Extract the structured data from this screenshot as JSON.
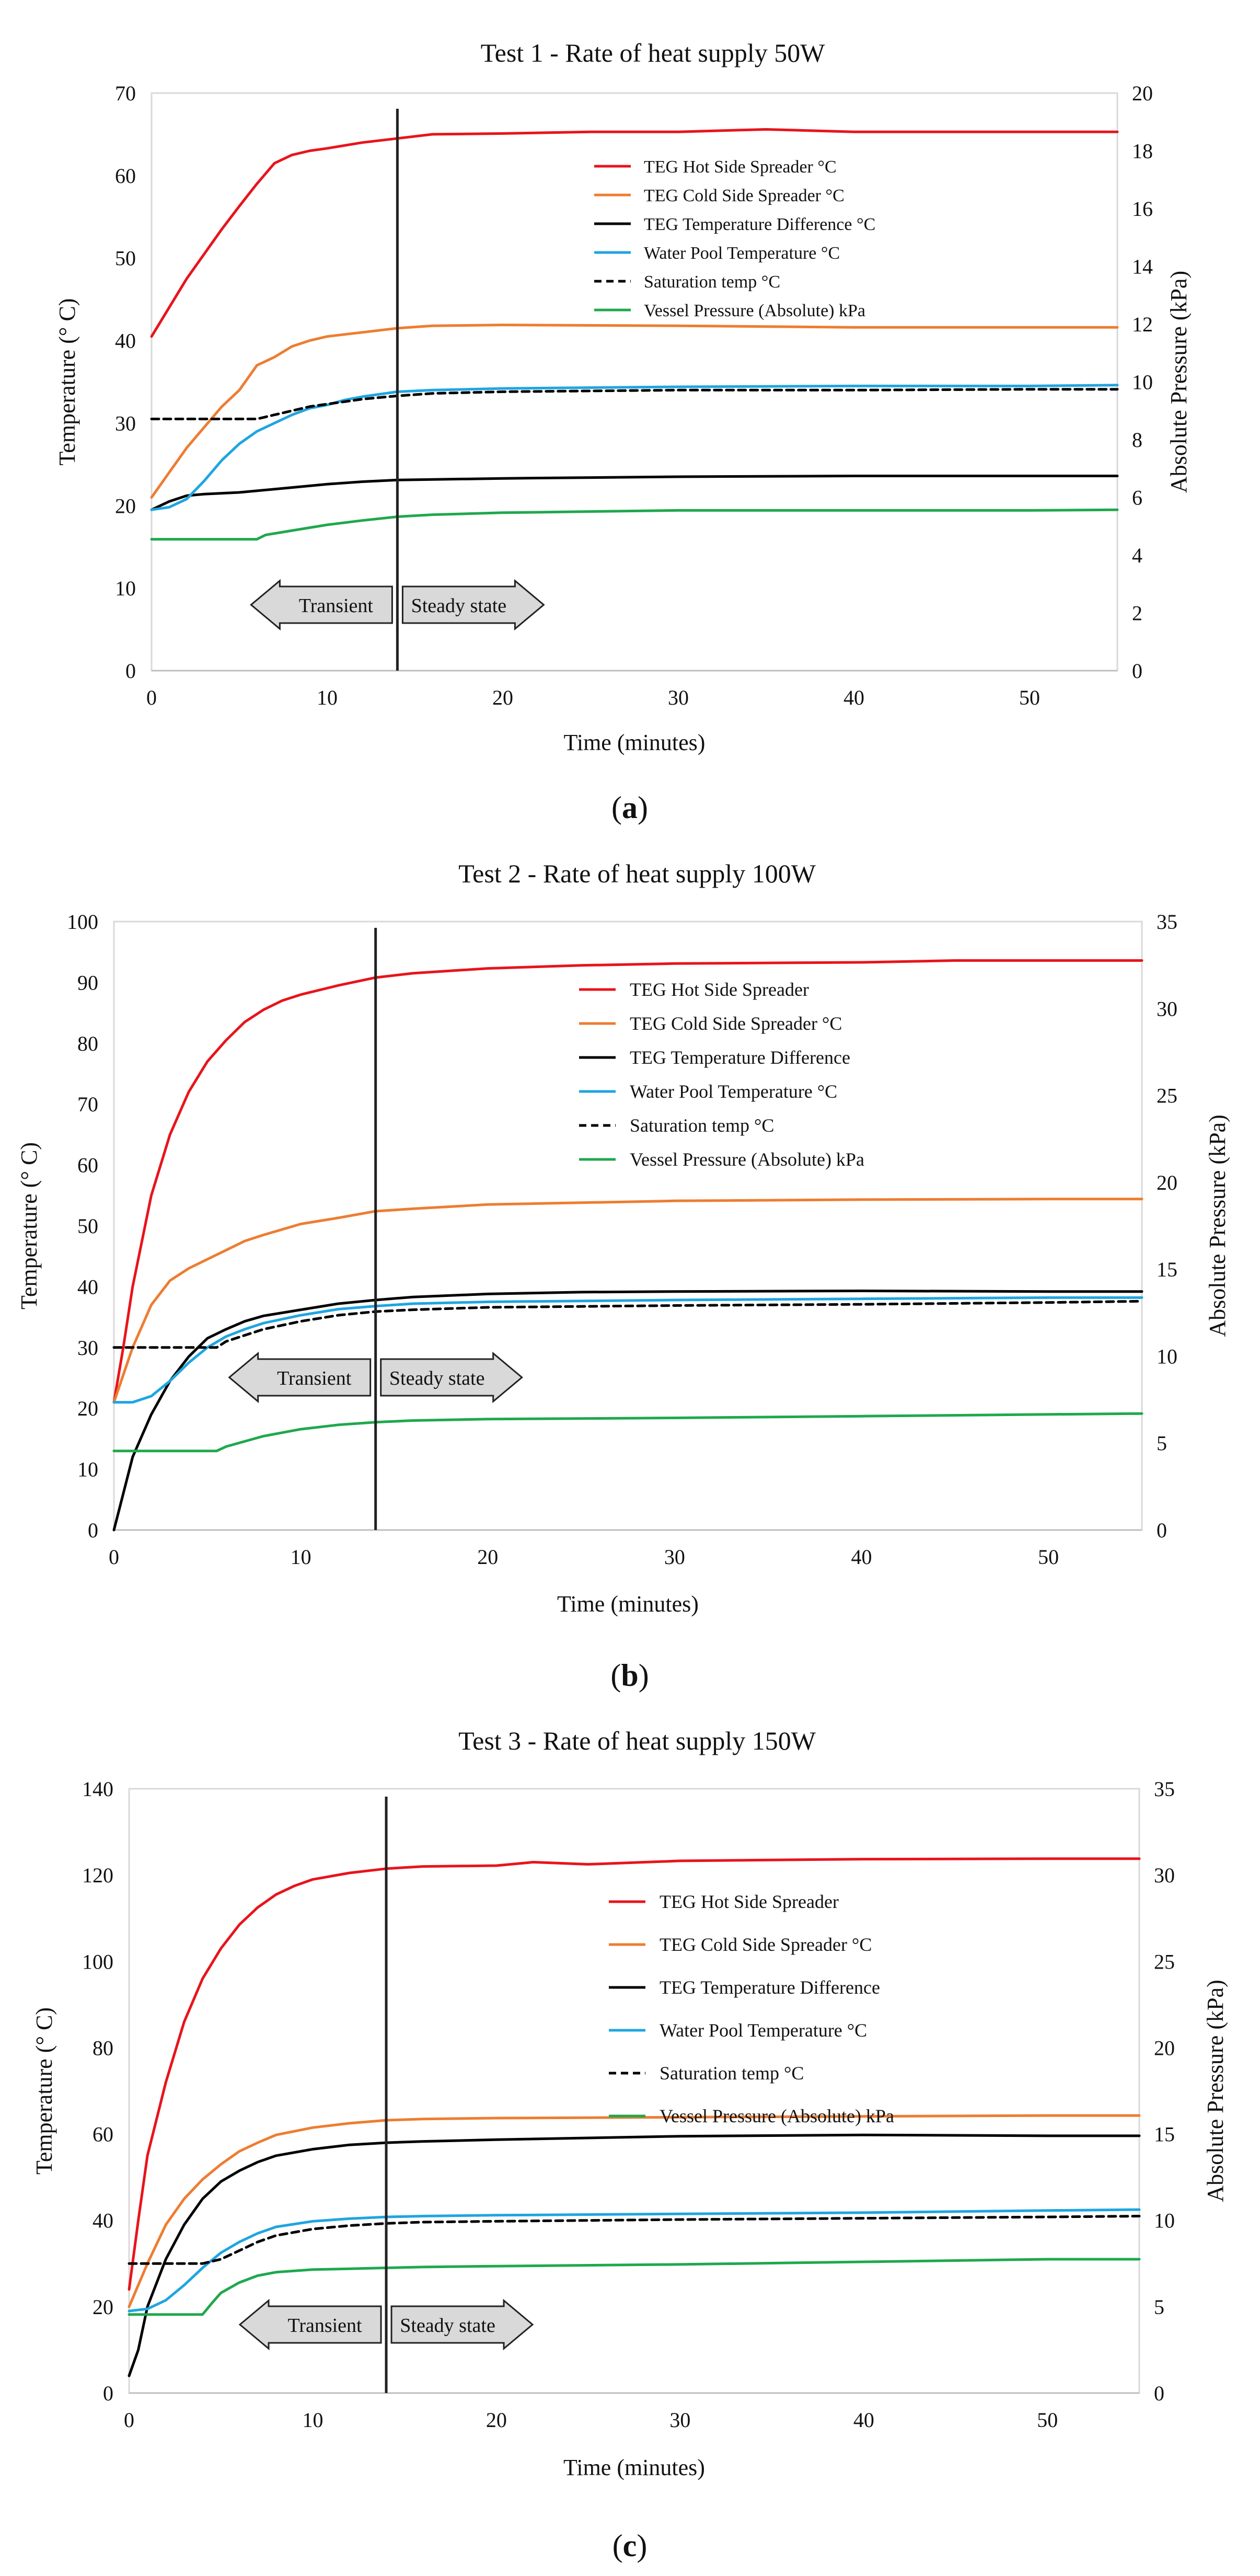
{
  "chart_data": [
    {
      "type": "line",
      "panel_label": "a",
      "title": "Test 1 - Rate of heat supply 50W",
      "xlabel": "Time (minutes)",
      "ylabel": "Temperature (° C)",
      "y2label": "Absolute Pressure (kPa)",
      "xlim": [
        0,
        55
      ],
      "ylim": [
        0,
        70
      ],
      "y2lim": [
        0,
        20
      ],
      "xticks": [
        0,
        10,
        20,
        30,
        40,
        50
      ],
      "yticks": [
        0,
        10,
        20,
        30,
        40,
        50,
        60,
        70
      ],
      "y2ticks": [
        0,
        2,
        4,
        6,
        8,
        10,
        12,
        14,
        16,
        18,
        20
      ],
      "transition_time": 14,
      "annotations": [
        "Transient",
        "Steady state"
      ],
      "legend_position": "top-right",
      "series": [
        {
          "name": "TEG Hot Side Spreader °C",
          "color": "#e8141b",
          "style": "solid",
          "axis": "left",
          "x": [
            0,
            1,
            2,
            3,
            4,
            5,
            6,
            7,
            8,
            9,
            10,
            12,
            14,
            16,
            20,
            25,
            30,
            35,
            40,
            45,
            50,
            55
          ],
          "values": [
            40.5,
            44,
            47.5,
            50.5,
            53.5,
            56.3,
            59,
            61.5,
            62.5,
            63,
            63.3,
            64,
            64.5,
            65,
            65.1,
            65.3,
            65.3,
            65.6,
            65.3,
            65.3,
            65.3,
            65.3
          ]
        },
        {
          "name": "TEG Cold Side Spreader °C",
          "color": "#ed7d31",
          "style": "solid",
          "axis": "left",
          "x": [
            0,
            1,
            2,
            3,
            4,
            5,
            6,
            7,
            8,
            9,
            10,
            12,
            14,
            16,
            20,
            30,
            40,
            50,
            55
          ],
          "values": [
            21,
            24,
            27,
            29.5,
            32,
            34,
            37,
            38,
            39.3,
            40,
            40.5,
            41,
            41.5,
            41.8,
            41.9,
            41.8,
            41.6,
            41.6,
            41.6
          ]
        },
        {
          "name": "TEG Temperature Difference °C",
          "color": "#000000",
          "style": "solid",
          "axis": "left",
          "x": [
            0,
            1,
            2,
            3,
            4,
            5,
            6,
            8,
            10,
            12,
            14,
            20,
            30,
            40,
            50,
            55
          ],
          "values": [
            19.5,
            20.5,
            21.2,
            21.4,
            21.5,
            21.6,
            21.8,
            22.2,
            22.6,
            22.9,
            23.1,
            23.3,
            23.5,
            23.6,
            23.6,
            23.6
          ]
        },
        {
          "name": "Water Pool Temperature  °C",
          "color": "#1fa5e0",
          "style": "solid",
          "axis": "left",
          "x": [
            0,
            1,
            2,
            3,
            4,
            5,
            6,
            7,
            8,
            9,
            10,
            11,
            12,
            14,
            16,
            20,
            30,
            40,
            50,
            55
          ],
          "values": [
            19.5,
            19.8,
            20.8,
            23,
            25.5,
            27.5,
            29,
            30,
            31,
            31.8,
            32.2,
            32.8,
            33.2,
            33.8,
            34,
            34.2,
            34.4,
            34.5,
            34.5,
            34.6
          ]
        },
        {
          "name": "Saturation temp °C",
          "color": "#000000",
          "style": "dashed",
          "axis": "left",
          "x": [
            0,
            2,
            4,
            6,
            7,
            8,
            9,
            10,
            12,
            14,
            16,
            20,
            30,
            40,
            50,
            55
          ],
          "values": [
            30.5,
            30.5,
            30.5,
            30.5,
            31,
            31.5,
            32,
            32.3,
            32.9,
            33.3,
            33.6,
            33.8,
            34,
            34,
            34.1,
            34.1
          ]
        },
        {
          "name": "Vessel Pressure (Absolute) kPa",
          "color": "#1fa84d",
          "style": "solid",
          "axis": "right",
          "x": [
            0,
            2,
            4,
            6,
            6.5,
            8,
            10,
            12,
            14,
            16,
            20,
            30,
            40,
            50,
            55
          ],
          "values": [
            4.55,
            4.55,
            4.55,
            4.55,
            4.7,
            4.85,
            5.05,
            5.2,
            5.33,
            5.4,
            5.47,
            5.55,
            5.55,
            5.55,
            5.57
          ]
        }
      ]
    },
    {
      "type": "line",
      "panel_label": "b",
      "title": "Test 2 - Rate of heat supply 100W",
      "xlabel": "Time (minutes)",
      "ylabel": "Temperature (° C)",
      "y2label": "Absolute Pressure (kPa)",
      "xlim": [
        0,
        55
      ],
      "ylim": [
        0,
        100
      ],
      "y2lim": [
        0,
        35
      ],
      "xticks": [
        0,
        10,
        20,
        30,
        40,
        50
      ],
      "yticks": [
        0,
        10,
        20,
        30,
        40,
        50,
        60,
        70,
        80,
        90,
        100
      ],
      "y2ticks": [
        0,
        5,
        10,
        15,
        20,
        25,
        30,
        35
      ],
      "transition_time": 14,
      "annotations": [
        "Transient",
        "Steady state"
      ],
      "legend_position": "top-right",
      "series": [
        {
          "name": "TEG Hot Side Spreader",
          "color": "#e8141b",
          "style": "solid",
          "axis": "left",
          "x": [
            0,
            0.5,
            1,
            2,
            3,
            4,
            5,
            6,
            7,
            8,
            9,
            10,
            12,
            14,
            16,
            20,
            25,
            30,
            40,
            45,
            50,
            55
          ],
          "values": [
            21,
            30,
            40,
            55,
            65,
            72,
            77,
            80.5,
            83.5,
            85.5,
            87,
            88,
            89.5,
            90.8,
            91.5,
            92.3,
            92.8,
            93.1,
            93.3,
            93.6,
            93.6,
            93.6
          ]
        },
        {
          "name": "TEG Cold Side Spreader °C",
          "color": "#ed7d31",
          "style": "solid",
          "axis": "left",
          "x": [
            0,
            1,
            2,
            3,
            4,
            5,
            6,
            7,
            8,
            10,
            12,
            14,
            16,
            20,
            30,
            40,
            50,
            55
          ],
          "values": [
            21,
            30,
            37,
            41,
            43,
            44.5,
            46,
            47.5,
            48.5,
            50.3,
            51.3,
            52.4,
            52.8,
            53.5,
            54.1,
            54.3,
            54.4,
            54.4
          ]
        },
        {
          "name": "TEG Temperature Difference",
          "color": "#000000",
          "style": "solid",
          "axis": "left",
          "x": [
            0,
            0.5,
            1,
            2,
            3,
            4,
            5,
            6,
            7,
            8,
            10,
            12,
            14,
            16,
            20,
            25,
            30,
            40,
            50,
            55
          ],
          "values": [
            0,
            6,
            12,
            19,
            24.5,
            28.5,
            31.5,
            33,
            34.3,
            35.2,
            36.2,
            37.2,
            37.8,
            38.3,
            38.8,
            39.1,
            39.2,
            39.3,
            39.2,
            39.2
          ]
        },
        {
          "name": "Water Pool Temperature  °C",
          "color": "#1fa5e0",
          "style": "solid",
          "axis": "left",
          "x": [
            0,
            1,
            2,
            3,
            4,
            5,
            6,
            7,
            8,
            10,
            12,
            14,
            16,
            20,
            30,
            40,
            50,
            55
          ],
          "values": [
            21,
            21,
            22,
            24.5,
            27.5,
            30,
            31.8,
            33,
            34,
            35.3,
            36.3,
            36.8,
            37.2,
            37.5,
            37.8,
            38,
            38.2,
            38.2
          ]
        },
        {
          "name": "Saturation temp °C",
          "color": "#000000",
          "style": "dashed",
          "axis": "left",
          "x": [
            0,
            2,
            4,
            5.5,
            6,
            7,
            8,
            10,
            12,
            14,
            16,
            20,
            30,
            40,
            50,
            55
          ],
          "values": [
            30,
            30,
            30,
            30,
            31,
            32,
            33,
            34.3,
            35.3,
            35.9,
            36.2,
            36.6,
            36.9,
            37.1,
            37.4,
            37.6
          ]
        },
        {
          "name": "Vessel Pressure (Absolute) kPa",
          "color": "#1fa84d",
          "style": "solid",
          "axis": "right",
          "x": [
            0,
            2,
            4,
            5.5,
            6,
            7,
            8,
            10,
            12,
            14,
            16,
            20,
            30,
            40,
            50,
            55
          ],
          "values": [
            4.55,
            4.55,
            4.55,
            4.55,
            4.8,
            5.1,
            5.4,
            5.8,
            6.05,
            6.2,
            6.3,
            6.38,
            6.45,
            6.55,
            6.65,
            6.7
          ]
        }
      ]
    },
    {
      "type": "line",
      "panel_label": "c",
      "title": "Test 3 - Rate of heat supply 150W",
      "xlabel": "Time (minutes)",
      "ylabel": "Temperature (° C)",
      "y2label": "Absolute Pressure (kPa)",
      "xlim": [
        0,
        55
      ],
      "ylim": [
        0,
        140
      ],
      "y2lim": [
        0,
        35
      ],
      "xticks": [
        0,
        10,
        20,
        30,
        40,
        50
      ],
      "yticks": [
        0,
        20,
        40,
        60,
        80,
        100,
        120,
        140
      ],
      "y2ticks": [
        0,
        5,
        10,
        15,
        20,
        25,
        30,
        35
      ],
      "transition_time": 14,
      "annotations": [
        "Transient",
        "Steady state"
      ],
      "legend_position": "top-right",
      "series": [
        {
          "name": "TEG Hot Side Spreader",
          "color": "#e8141b",
          "style": "solid",
          "axis": "left",
          "x": [
            0,
            0.5,
            1,
            2,
            3,
            4,
            5,
            6,
            7,
            8,
            9,
            10,
            12,
            14,
            16,
            20,
            22,
            25,
            30,
            40,
            50,
            55
          ],
          "values": [
            24,
            40,
            55,
            72,
            86,
            96,
            103,
            108.5,
            112.5,
            115.5,
            117.5,
            119,
            120.5,
            121.5,
            122,
            122.2,
            123,
            122.5,
            123.3,
            123.7,
            123.8,
            123.8
          ]
        },
        {
          "name": "TEG Cold Side Spreader °C",
          "color": "#ed7d31",
          "style": "solid",
          "axis": "left",
          "x": [
            0,
            1,
            2,
            3,
            4,
            5,
            6,
            7,
            8,
            10,
            12,
            14,
            16,
            20,
            30,
            40,
            50,
            55
          ],
          "values": [
            20,
            30,
            39,
            45,
            49.5,
            53,
            56,
            58,
            59.8,
            61.5,
            62.5,
            63.2,
            63.5,
            63.7,
            63.9,
            64.1,
            64.3,
            64.3
          ]
        },
        {
          "name": "TEG Temperature Difference",
          "color": "#000000",
          "style": "solid",
          "axis": "left",
          "x": [
            0,
            0.5,
            1,
            2,
            3,
            4,
            5,
            6,
            7,
            8,
            10,
            12,
            14,
            16,
            20,
            30,
            40,
            50,
            55
          ],
          "values": [
            4,
            10,
            20,
            31,
            39,
            45,
            49,
            51.5,
            53.5,
            55,
            56.5,
            57.5,
            58,
            58.3,
            58.7,
            59.5,
            59.8,
            59.6,
            59.6
          ]
        },
        {
          "name": "Water Pool Temperature  °C",
          "color": "#1fa5e0",
          "style": "solid",
          "axis": "left",
          "x": [
            0,
            1,
            2,
            3,
            4,
            5,
            6,
            7,
            8,
            10,
            12,
            14,
            16,
            20,
            30,
            40,
            50,
            55
          ],
          "values": [
            19,
            19.5,
            21.5,
            25,
            29,
            32.5,
            35,
            37,
            38.5,
            39.8,
            40.4,
            40.8,
            41,
            41.2,
            41.5,
            41.8,
            42.3,
            42.5
          ]
        },
        {
          "name": "Saturation temp °C",
          "color": "#000000",
          "style": "dashed",
          "axis": "left",
          "x": [
            0,
            2,
            4,
            5,
            6,
            7,
            8,
            10,
            12,
            14,
            16,
            20,
            30,
            40,
            50,
            55
          ],
          "values": [
            30,
            30,
            30,
            31,
            33,
            35,
            36.5,
            38,
            38.8,
            39.3,
            39.6,
            39.8,
            40.2,
            40.5,
            40.8,
            41
          ]
        },
        {
          "name": "Vessel Pressure (Absolute) kPa",
          "color": "#1fa84d",
          "style": "solid",
          "axis": "right",
          "x": [
            0,
            2,
            4,
            4.5,
            5,
            6,
            7,
            8,
            10,
            12,
            14,
            16,
            20,
            30,
            40,
            50,
            55
          ],
          "values": [
            4.55,
            4.55,
            4.55,
            5.2,
            5.8,
            6.4,
            6.8,
            7,
            7.15,
            7.2,
            7.25,
            7.3,
            7.35,
            7.45,
            7.6,
            7.75,
            7.75
          ]
        }
      ]
    }
  ]
}
